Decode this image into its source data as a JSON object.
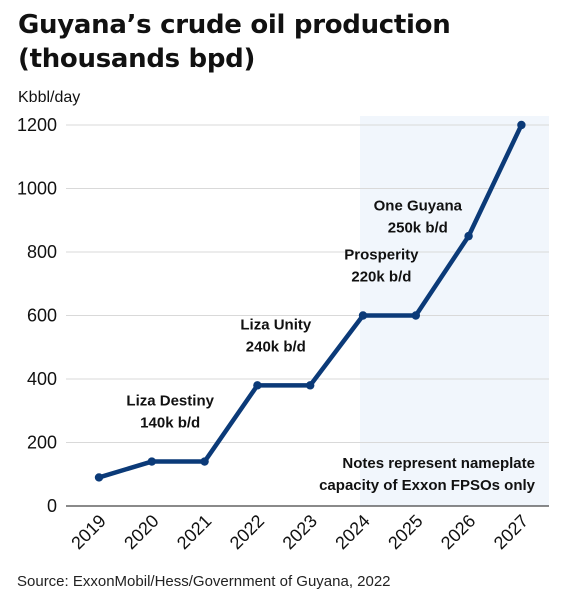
{
  "title": "Guyana’s crude oil production (thousands bpd)",
  "source": "Source: ExxonMobil/Hess/Government of Guyana, 2022",
  "colors": {
    "line": "#0b3a78",
    "shade": "#f1f6fc",
    "grid": "#d9d9d9"
  },
  "chart_data": {
    "type": "line",
    "title": "Guyana’s crude oil production (thousands bpd)",
    "ylabel": "Kbbl/day",
    "xlabel": "",
    "ylim": [
      0,
      1200
    ],
    "yticks": [
      "0",
      "200",
      "400",
      "600",
      "800",
      "1000",
      "1200"
    ],
    "categories": [
      "2019",
      "2020",
      "2021",
      "2022",
      "2023",
      "2024",
      "2025",
      "2026",
      "2027"
    ],
    "series": [
      {
        "values": [
          90,
          140,
          140,
          380,
          380,
          600,
          600,
          850,
          1200
        ]
      }
    ],
    "shaded_from": "2024",
    "grid": true,
    "annotations": [
      {
        "lines": [
          "Liza Destiny",
          "140k b/d"
        ],
        "at": "2020"
      },
      {
        "lines": [
          "Liza Unity",
          "240k b/d"
        ],
        "at": "2022"
      },
      {
        "lines": [
          "Prosperity",
          "220k b/d"
        ],
        "at": "2024"
      },
      {
        "lines": [
          "One Guyana",
          "250k b/d"
        ],
        "at": "2025"
      },
      {
        "lines": [
          "Notes represent nameplate",
          "capacity of Exxon FPSOs only"
        ],
        "at": "note"
      }
    ]
  }
}
